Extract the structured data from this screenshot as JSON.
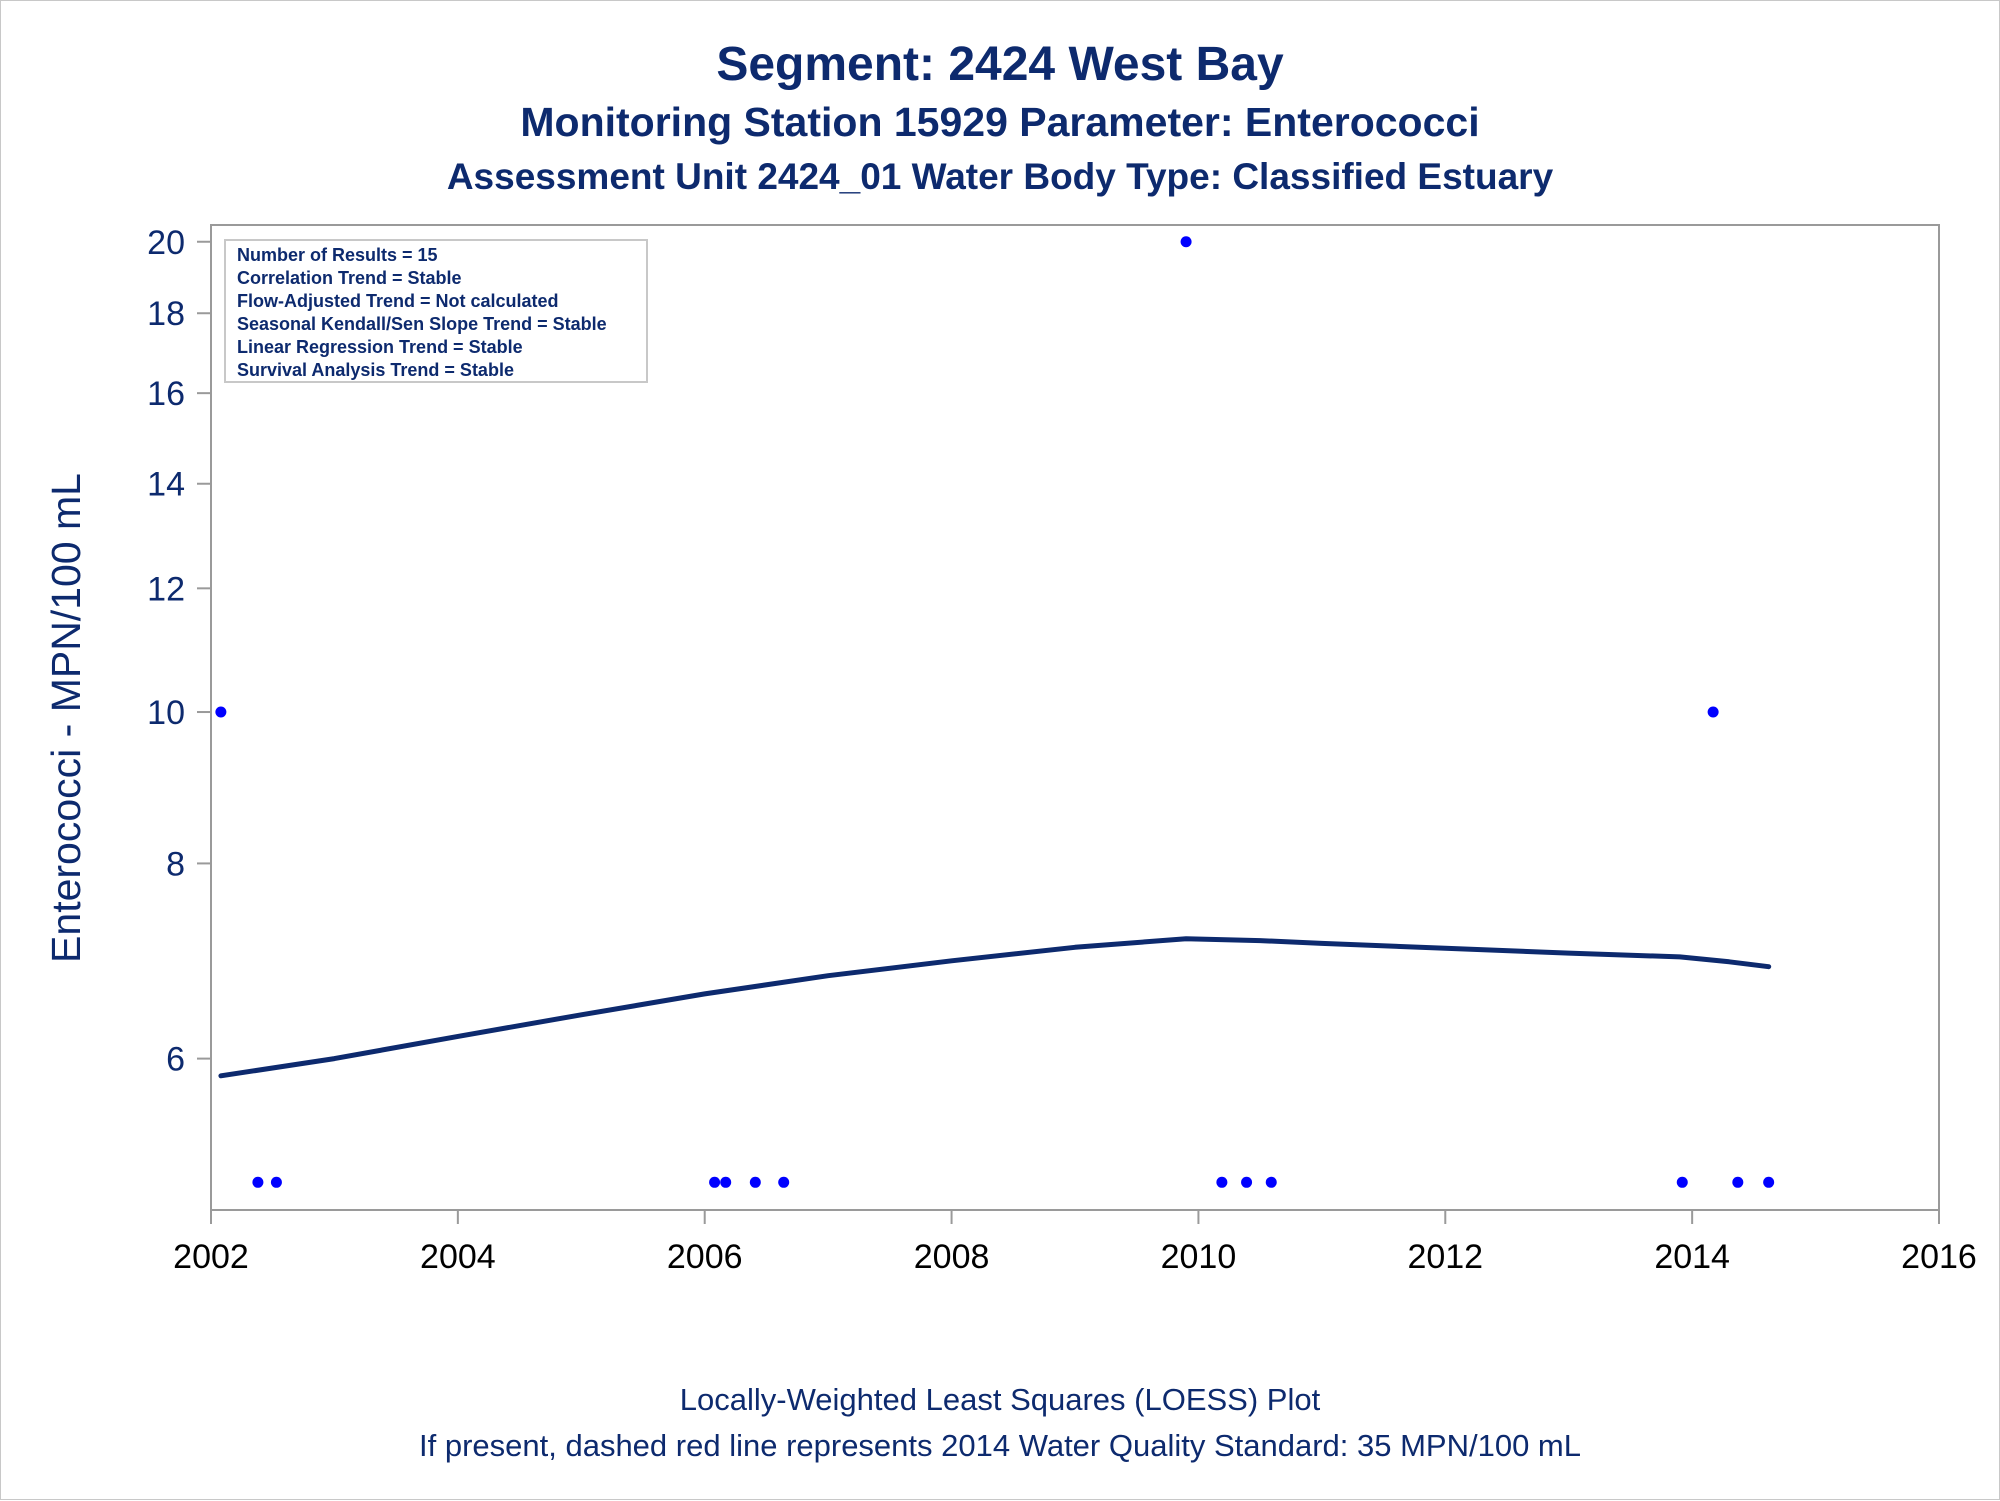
{
  "header": {
    "title": "Segment: 2424  West Bay",
    "subtitle1": "Monitoring Station 15929 Parameter: Enterococci",
    "subtitle2": "Assessment Unit 2424_01   Water Body Type: Classified Estuary"
  },
  "footer": {
    "line1": "Locally-Weighted Least Squares (LOESS) Plot",
    "line2": "If present, dashed red line represents 2014 Water Quality Standard: 35 MPN/100 mL"
  },
  "infobox": {
    "lines": [
      "Number of Results = 15",
      "Correlation Trend = Stable",
      "Flow-Adjusted Trend = Not calculated",
      "Seasonal Kendall/Sen Slope Trend = Stable",
      "Linear Regression Trend = Stable",
      "Survival Analysis Trend = Stable"
    ]
  },
  "colors": {
    "text": "#0d2a6e",
    "points": "#0000ff",
    "loess": "#0d2a6e",
    "frame": "#9a9a9a"
  },
  "chart_data": {
    "type": "scatter",
    "xlabel": "",
    "ylabel": "Enterococci - MPN/100 mL",
    "y_scale": "log",
    "xlim": [
      2002,
      2016
    ],
    "ylim": [
      4.8,
      20.5
    ],
    "x_ticks": [
      2002,
      2004,
      2006,
      2008,
      2010,
      2012,
      2014,
      2016
    ],
    "y_ticks": [
      6,
      8,
      10,
      12,
      14,
      16,
      18,
      20
    ],
    "grid": false,
    "series": [
      {
        "kind": "points",
        "x": [
          2002.08,
          2002.38,
          2002.53,
          2006.08,
          2006.17,
          2006.41,
          2006.64,
          2009.9,
          2010.19,
          2010.39,
          2010.59,
          2013.92,
          2014.17,
          2014.37,
          2014.62
        ],
        "y": [
          10,
          5,
          5,
          5,
          5,
          5,
          5,
          20,
          5,
          5,
          5,
          5,
          10,
          5,
          5
        ]
      },
      {
        "kind": "loess",
        "x": [
          2002.08,
          2003,
          2004,
          2005,
          2006,
          2007,
          2008,
          2009,
          2009.9,
          2010.5,
          2011,
          2012,
          2013,
          2013.9,
          2014.3,
          2014.62
        ],
        "y": [
          5.85,
          6.0,
          6.2,
          6.4,
          6.6,
          6.78,
          6.93,
          7.07,
          7.16,
          7.14,
          7.11,
          7.06,
          7.01,
          6.97,
          6.92,
          6.87
        ]
      }
    ]
  }
}
